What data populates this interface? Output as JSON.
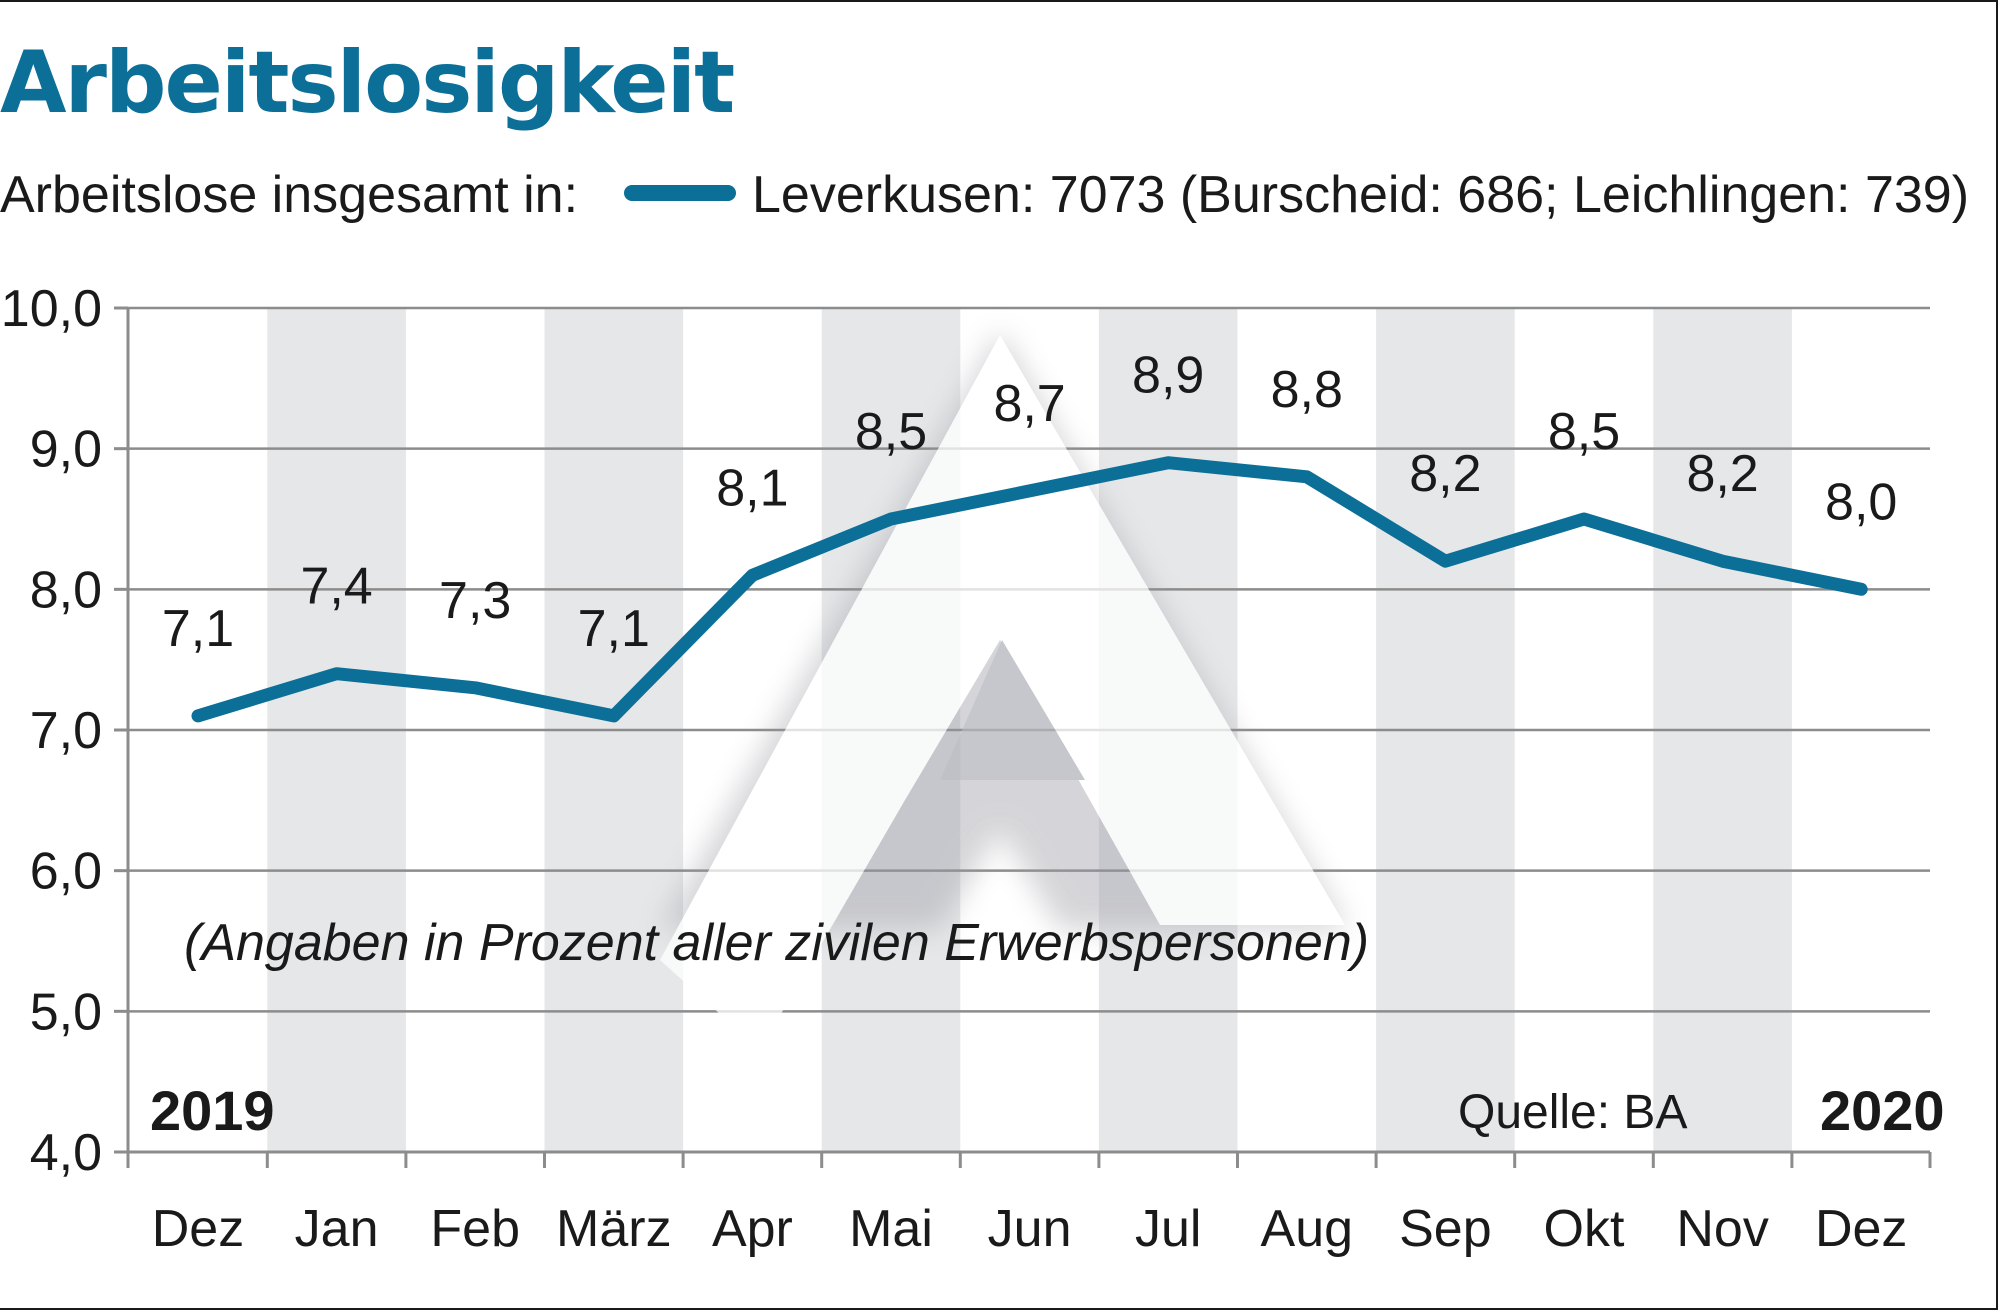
{
  "title": "Arbeitslosigkeit",
  "subtitle": {
    "prefix": "Arbeitslose insgesamt in:",
    "legend_text": "Leverkusen: 7073 (Burscheid: 686; Leichlingen: 739)"
  },
  "note": "(Angaben in Prozent aller zivilen Erwerbspersonen)",
  "year_start": "2019",
  "year_end": "2020",
  "source": "Quelle: BA",
  "colors": {
    "line": "#0b6f98",
    "title": "#0b6f98",
    "band": "#e6e7e9",
    "grid": "#8c8c8c"
  },
  "chart_data": {
    "type": "line",
    "categories": [
      "Dez",
      "Jan",
      "Feb",
      "März",
      "Apr",
      "Mai",
      "Jun",
      "Jul",
      "Aug",
      "Sep",
      "Okt",
      "Nov",
      "Dez"
    ],
    "series": [
      {
        "name": "Leverkusen: 7073 (Burscheid: 686; Leichlingen: 739)",
        "values": [
          7.1,
          7.4,
          7.3,
          7.1,
          8.1,
          8.5,
          8.7,
          8.9,
          8.8,
          8.2,
          8.5,
          8.2,
          8.0
        ],
        "labels": [
          "7,1",
          "7,4",
          "7,3",
          "7,1",
          "8,1",
          "8,5",
          "8,7",
          "8,9",
          "8,8",
          "8,2",
          "8,5",
          "8,2",
          "8,0"
        ]
      }
    ],
    "ylim": [
      4.0,
      10.0
    ],
    "yticks": [
      4.0,
      5.0,
      6.0,
      7.0,
      8.0,
      9.0,
      10.0
    ],
    "ytick_labels": [
      "4,0",
      "5,0",
      "6,0",
      "7,0",
      "8,0",
      "9,0",
      "10,0"
    ],
    "shaded_columns": [
      "Jan",
      "März",
      "Mai",
      "Jul",
      "Sep",
      "Nov"
    ],
    "grid": true,
    "xlabel": "",
    "ylabel": ""
  }
}
